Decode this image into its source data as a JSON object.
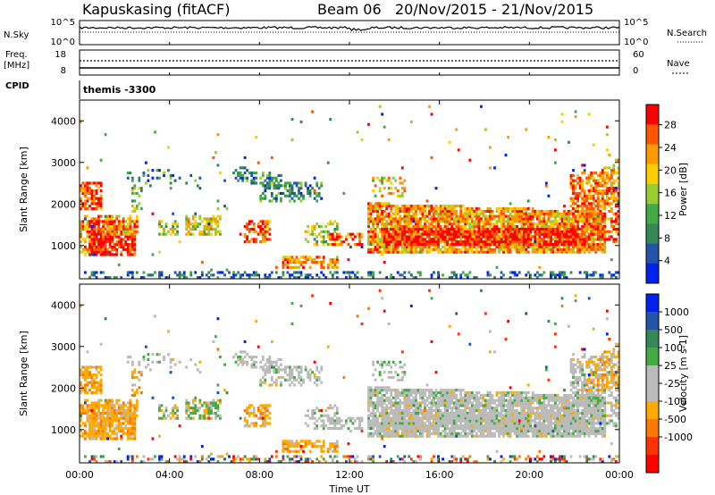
{
  "header": {
    "title": "Kapuskasing (fitACF)",
    "beam": "Beam 06",
    "date_range": "20/Nov/2015 - 21/Nov/2015"
  },
  "noise_panel": {
    "left_label": "N.Sky",
    "left_ticks": [
      "10^5",
      "10^0"
    ],
    "right_ticks": [
      "10^5",
      "10^0"
    ],
    "right_label": "N.Search"
  },
  "freq_panel": {
    "left_label_1": "Freq.",
    "left_label_2": "[MHz]",
    "left_ticks": [
      "18",
      "8"
    ],
    "right_ticks": [
      "60",
      "0"
    ],
    "right_label": "Nave"
  },
  "cpid_panel": {
    "label": "CPID",
    "value": "themis -3300"
  },
  "colors": {
    "power_scale": [
      "#0022ee",
      "#2255aa",
      "#338855",
      "#44aa44",
      "#99cc33",
      "#ffcc00",
      "#ff9900",
      "#ff5500",
      "#ff0000"
    ],
    "velocity_scale": [
      "#0022ee",
      "#2255aa",
      "#338855",
      "#44aa44",
      "#bbbbbb",
      "#bbbbbb",
      "#ffaa00",
      "#ff7700",
      "#ff3300",
      "#ff0000"
    ]
  },
  "chart_data": [
    {
      "type": "heatmap",
      "name": "power",
      "ylabel": "Slant Range [km]",
      "yticks": [
        "1000",
        "2000",
        "3000",
        "4000"
      ],
      "ylim": [
        200,
        4500
      ],
      "colorbar_label": "Power [dB]",
      "colorbar_ticks": [
        "4",
        "8",
        "12",
        "16",
        "20",
        "24",
        "28"
      ],
      "colorbar_range": [
        0,
        30
      ]
    },
    {
      "type": "heatmap",
      "name": "velocity",
      "ylabel": "Slant Range [km]",
      "yticks": [
        "1000",
        "2000",
        "3000",
        "4000"
      ],
      "ylim": [
        200,
        4500
      ],
      "colorbar_label": "Velocity [m s-1]",
      "colorbar_ticks": [
        "1000",
        "500",
        "100",
        "25",
        "-25",
        "-100",
        "-500",
        "-1000"
      ]
    }
  ],
  "x_axis": {
    "ticks": [
      "00:00",
      "04:00",
      "08:00",
      "12:00",
      "16:00",
      "20:00",
      "00:00"
    ],
    "label": "Time UT",
    "range_hours": [
      0,
      24
    ]
  }
}
